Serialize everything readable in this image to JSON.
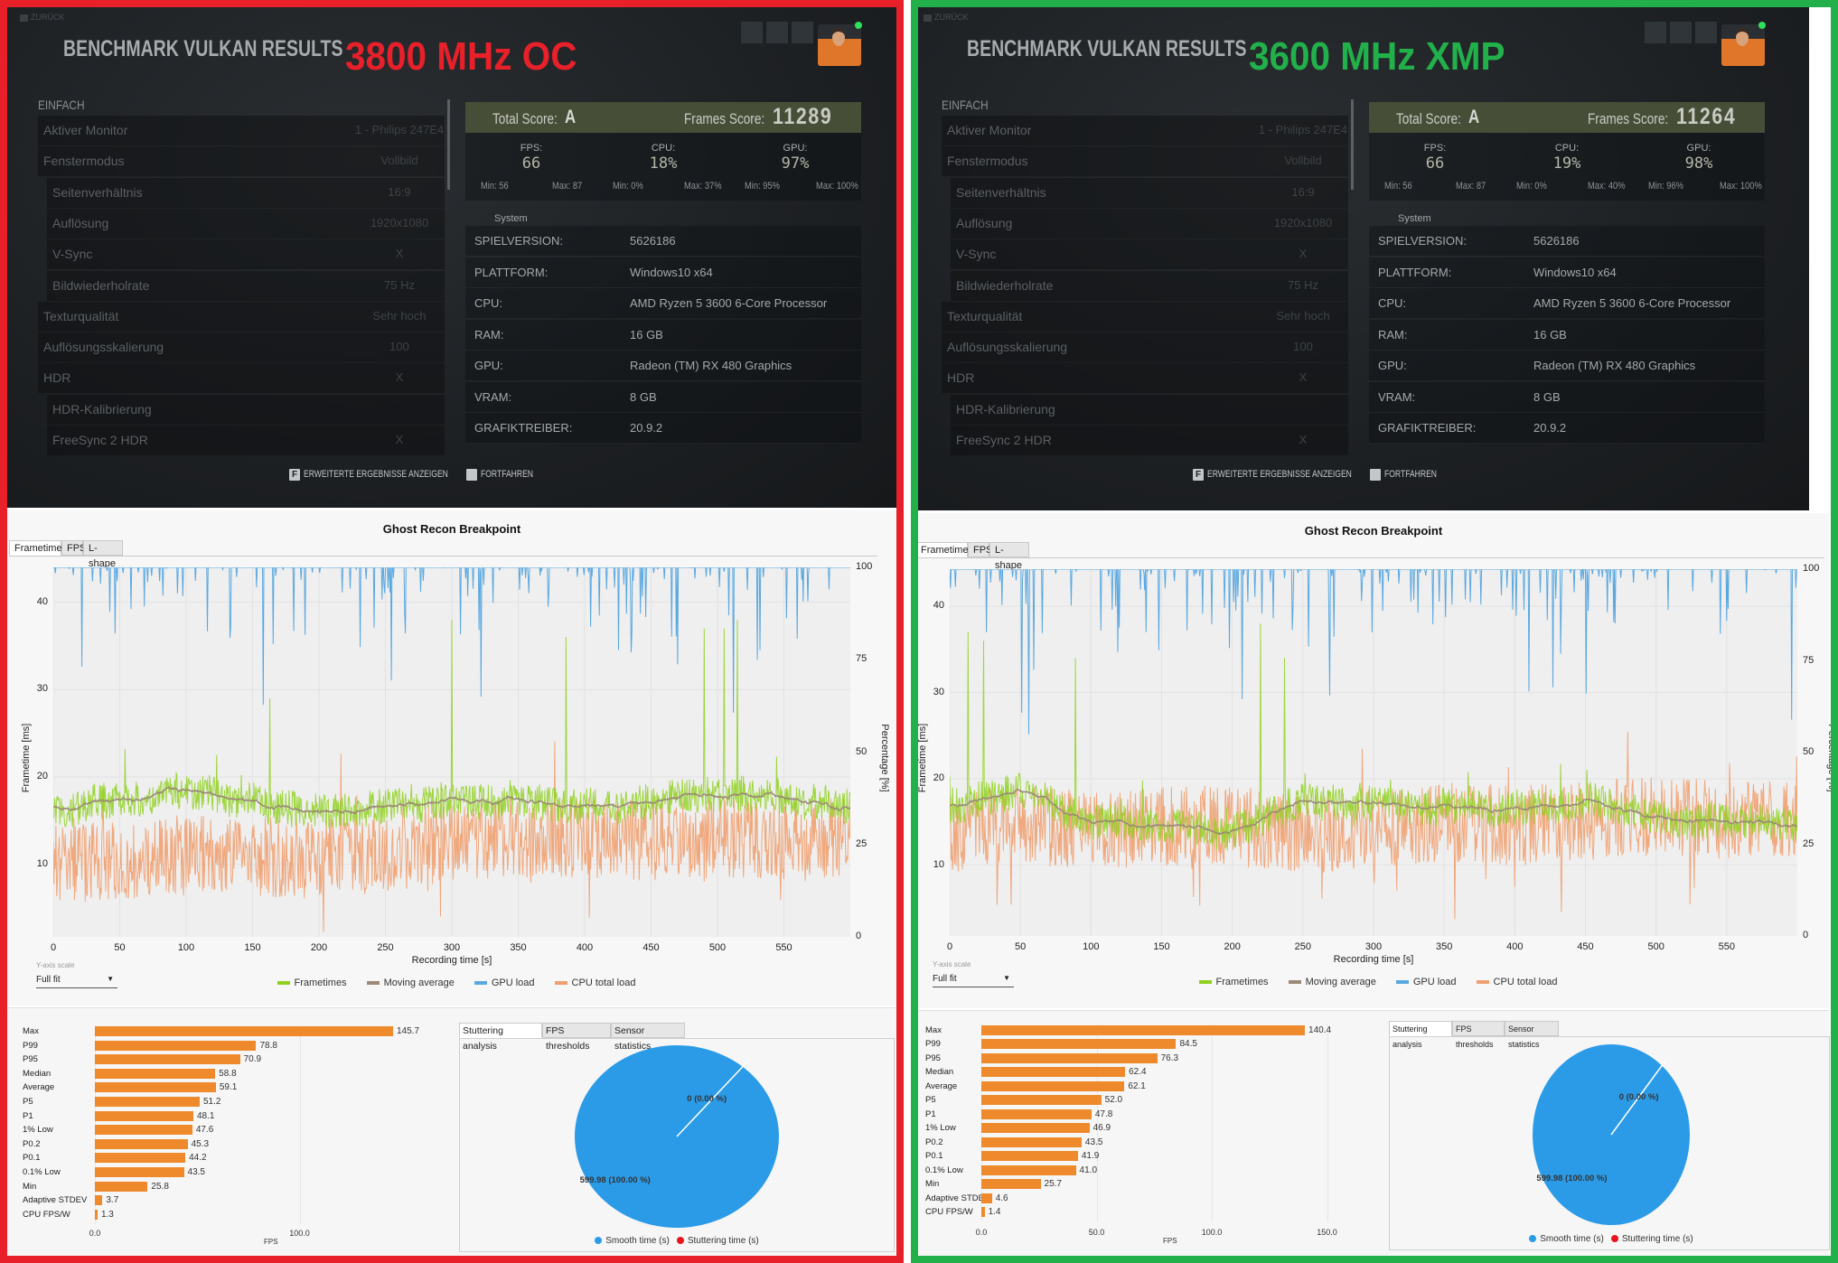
{
  "panels": [
    {
      "label": "3800 MHz OC",
      "accent": "#e8202a",
      "game": {
        "back": "ZURÜCK",
        "title": "BENCHMARK VULKAN RESULTS",
        "section": "EINFACH",
        "settings": [
          {
            "name": "Aktiver Monitor",
            "value": "1 - Philips 247E4",
            "indent": false
          },
          {
            "name": "Fenstermodus",
            "value": "Vollbild",
            "indent": false
          },
          {
            "name": "Seitenverhältnis",
            "value": "16:9",
            "indent": true
          },
          {
            "name": "Auflösung",
            "value": "1920x1080",
            "indent": true
          },
          {
            "name": "V-Sync",
            "value": "X",
            "indent": true
          },
          {
            "name": "Bildwiederholrate",
            "value": "75 Hz",
            "indent": true
          },
          {
            "name": "Texturqualität",
            "value": "Sehr hoch",
            "indent": false
          },
          {
            "name": "Auflösungsskalierung",
            "value": "100",
            "indent": false
          },
          {
            "name": "HDR",
            "value": "X",
            "indent": false
          },
          {
            "name": "HDR-Kalibrierung",
            "value": "",
            "indent": true
          },
          {
            "name": "FreeSync 2 HDR",
            "value": "X",
            "indent": true
          }
        ],
        "total_score_label": "Total Score:",
        "total_score": "A",
        "frames_score_label": "Frames Score:",
        "frames_score": "11289",
        "stats": [
          {
            "label": "FPS:",
            "value": "66",
            "min": "Min: 56",
            "max": "Max: 87"
          },
          {
            "label": "CPU:",
            "value": "18%",
            "min": "Min: 0%",
            "max": "Max: 37%"
          },
          {
            "label": "GPU:",
            "value": "97%",
            "min": "Min: 95%",
            "max": "Max: 100%"
          }
        ],
        "system_header": "System",
        "system": [
          {
            "key": "SPIELVERSION:",
            "value": "5626186"
          },
          {
            "key": "PLATTFORM:",
            "value": "Windows10 x64"
          },
          {
            "key": "CPU:",
            "value": "AMD Ryzen 5 3600 6-Core Processor"
          },
          {
            "key": "RAM:",
            "value": "16 GB"
          },
          {
            "key": "GPU:",
            "value": "Radeon (TM) RX 480 Graphics"
          },
          {
            "key": "VRAM:",
            "value": "8 GB"
          },
          {
            "key": "GRAFIKTREIBER:",
            "value": "20.9.2"
          }
        ],
        "buttons": [
          {
            "key": "F",
            "label": "ERWEITERTE ERGEBNISSE ANZEIGEN"
          },
          {
            "key": "",
            "label": "FORTFAHREN"
          }
        ]
      },
      "tabs": [
        "Frametimes",
        "FPS",
        "L-shape"
      ],
      "y_axis_scale_label": "Y-axis scale",
      "y_axis_scale_value": "Full fit",
      "stats_tabs": [
        "Stuttering analysis",
        "FPS thresholds",
        "Sensor statistics"
      ]
    },
    {
      "label": "3600 MHz XMP",
      "accent": "#22b04b",
      "game": {
        "back": "ZURÜCK",
        "title": "BENCHMARK VULKAN RESULTS",
        "section": "EINFACH",
        "settings": [
          {
            "name": "Aktiver Monitor",
            "value": "1 - Philips 247E4",
            "indent": false
          },
          {
            "name": "Fenstermodus",
            "value": "Vollbild",
            "indent": false
          },
          {
            "name": "Seitenverhältnis",
            "value": "16:9",
            "indent": true
          },
          {
            "name": "Auflösung",
            "value": "1920x1080",
            "indent": true
          },
          {
            "name": "V-Sync",
            "value": "X",
            "indent": true
          },
          {
            "name": "Bildwiederholrate",
            "value": "75 Hz",
            "indent": true
          },
          {
            "name": "Texturqualität",
            "value": "Sehr hoch",
            "indent": false
          },
          {
            "name": "Auflösungsskalierung",
            "value": "100",
            "indent": false
          },
          {
            "name": "HDR",
            "value": "X",
            "indent": false
          },
          {
            "name": "HDR-Kalibrierung",
            "value": "",
            "indent": true
          },
          {
            "name": "FreeSync 2 HDR",
            "value": "X",
            "indent": true
          }
        ],
        "total_score_label": "Total Score:",
        "total_score": "A",
        "frames_score_label": "Frames Score:",
        "frames_score": "11264",
        "stats": [
          {
            "label": "FPS:",
            "value": "66",
            "min": "Min: 56",
            "max": "Max: 87"
          },
          {
            "label": "CPU:",
            "value": "19%",
            "min": "Min: 0%",
            "max": "Max: 40%"
          },
          {
            "label": "GPU:",
            "value": "98%",
            "min": "Min: 96%",
            "max": "Max: 100%"
          }
        ],
        "system_header": "System",
        "system": [
          {
            "key": "SPIELVERSION:",
            "value": "5626186"
          },
          {
            "key": "PLATTFORM:",
            "value": "Windows10 x64"
          },
          {
            "key": "CPU:",
            "value": "AMD Ryzen 5 3600 6-Core Processor"
          },
          {
            "key": "RAM:",
            "value": "16 GB"
          },
          {
            "key": "GPU:",
            "value": "Radeon (TM) RX 480 Graphics"
          },
          {
            "key": "VRAM:",
            "value": "8 GB"
          },
          {
            "key": "GRAFIKTREIBER:",
            "value": "20.9.2"
          }
        ],
        "buttons": [
          {
            "key": "F",
            "label": "ERWEITERTE ERGEBNISSE ANZEIGEN"
          },
          {
            "key": "",
            "label": "FORTFAHREN"
          }
        ]
      },
      "tabs": [
        "Frametimes",
        "FPS",
        "L-shape"
      ],
      "y_axis_scale_label": "Y-axis scale",
      "y_axis_scale_value": "Full fit",
      "stats_tabs": [
        "Stuttering analysis",
        "FPS thresholds",
        "Sensor statistics"
      ]
    }
  ],
  "chart_data": [
    {
      "type": "line",
      "title": "Ghost Recon Breakpoint",
      "xlabel": "Recording time [s]",
      "ylabel": "Frametime [ms]",
      "y2label": "Percentage [%]",
      "xlim": [
        0,
        600
      ],
      "ylim": [
        1.7,
        44
      ],
      "y2lim": [
        0,
        100
      ],
      "xticks": [
        "0",
        "50",
        "100",
        "150",
        "200",
        "250",
        "300",
        "350",
        "400",
        "450",
        "500",
        "550"
      ],
      "yticks": [
        "10",
        "20",
        "30",
        "40"
      ],
      "y2ticks": [
        "0",
        "25",
        "50",
        "75",
        "100"
      ],
      "grid": true,
      "legend_position": "bottom",
      "x": [
        0,
        50,
        100,
        150,
        200,
        250,
        300,
        350,
        400,
        450,
        500,
        550,
        600
      ],
      "series": [
        {
          "name": "Frametimes",
          "color": "#8fd11e",
          "axis": "left",
          "values": [
            16.5,
            17,
            18.5,
            17,
            16,
            16.5,
            17.5,
            17,
            17,
            17,
            18,
            17.5,
            16.5
          ],
          "spikes": [
            [
              163,
              29
            ],
            [
              300,
              38
            ],
            [
              386,
              36
            ],
            [
              490,
              37
            ],
            [
              505,
              37
            ],
            [
              515,
              38
            ]
          ]
        },
        {
          "name": "Moving average",
          "color": "#9b8a78",
          "axis": "left",
          "values": [
            16.5,
            17,
            18.5,
            17,
            16,
            16.5,
            17.5,
            17,
            17,
            17,
            18,
            17.5,
            16.5
          ]
        },
        {
          "name": "GPU load",
          "color": "#5aa8e0",
          "axis": "right",
          "values": [
            97,
            97,
            97,
            97,
            96,
            97,
            97,
            97,
            98,
            97,
            97,
            97,
            97
          ]
        },
        {
          "name": "CPU total load",
          "color": "#f0a070",
          "axis": "right",
          "values": [
            20,
            21,
            22,
            22,
            21,
            23,
            26,
            27,
            27,
            26,
            27,
            25,
            27
          ]
        }
      ]
    },
    {
      "type": "line",
      "title": "Ghost Recon Breakpoint",
      "xlabel": "Recording time [s]",
      "ylabel": "Frametime [ms]",
      "y2label": "Percentage [%]",
      "xlim": [
        0,
        600
      ],
      "ylim": [
        1.8,
        44.3
      ],
      "y2lim": [
        0,
        100
      ],
      "xticks": [
        "0",
        "50",
        "100",
        "150",
        "200",
        "250",
        "300",
        "350",
        "400",
        "450",
        "500",
        "550"
      ],
      "yticks": [
        "10",
        "20",
        "30",
        "40"
      ],
      "y2ticks": [
        "0",
        "25",
        "50",
        "75",
        "100"
      ],
      "grid": true,
      "legend_position": "bottom",
      "x": [
        0,
        50,
        100,
        150,
        200,
        250,
        300,
        350,
        400,
        450,
        500,
        550,
        600
      ],
      "series": [
        {
          "name": "Frametimes",
          "color": "#8fd11e",
          "axis": "left",
          "values": [
            17,
            18.5,
            15,
            14.5,
            14,
            17.5,
            17,
            16.5,
            16.5,
            17.5,
            15.5,
            15,
            15
          ],
          "spikes": [
            [
              13,
              37
            ],
            [
              24,
              36
            ],
            [
              89,
              34
            ],
            [
              220,
              38
            ],
            [
              237,
              34
            ]
          ]
        },
        {
          "name": "Moving average",
          "color": "#9b8a78",
          "axis": "left",
          "values": [
            17,
            18.5,
            15,
            14.5,
            14,
            17.5,
            17,
            16.5,
            16.5,
            17.5,
            15.5,
            15,
            15
          ]
        },
        {
          "name": "GPU load",
          "color": "#5aa8e0",
          "axis": "right",
          "values": [
            98,
            98,
            98,
            97,
            98,
            98,
            98,
            98,
            98,
            98,
            98,
            98,
            98
          ]
        },
        {
          "name": "CPU total load",
          "color": "#f0a070",
          "axis": "right",
          "values": [
            28,
            30,
            29,
            30,
            30,
            28,
            29,
            31,
            30,
            31,
            33,
            32,
            31
          ]
        }
      ]
    },
    {
      "type": "bar",
      "orientation": "horizontal",
      "xlabel": "FPS",
      "xticks": [
        "0.0",
        "100.0"
      ],
      "categories": [
        "Max",
        "P99",
        "P95",
        "Median",
        "Average",
        "P5",
        "P1",
        "1% Low",
        "P0.2",
        "P0.1",
        "0.1% Low",
        "Min",
        "Adaptive STDEV",
        "CPU FPS/W"
      ],
      "values": [
        145.7,
        78.8,
        70.9,
        58.8,
        59.1,
        51.2,
        48.1,
        47.6,
        45.3,
        44.2,
        43.5,
        25.8,
        3.7,
        1.3
      ],
      "labels": [
        "145.7",
        "78.8",
        "70.9",
        "58.8",
        "59.1",
        "51.2",
        "48.1",
        "47.6",
        "45.3",
        "44.2",
        "43.5",
        "25.8",
        "3.7",
        "1.3"
      ],
      "color": "#ee8a2b"
    },
    {
      "type": "bar",
      "orientation": "horizontal",
      "xlabel": "FPS",
      "xticks": [
        "0.0",
        "50.0",
        "100.0",
        "150.0"
      ],
      "categories": [
        "Max",
        "P99",
        "P95",
        "Median",
        "Average",
        "P5",
        "P1",
        "1% Low",
        "P0.2",
        "P0.1",
        "0.1% Low",
        "Min",
        "Adaptive STDEV",
        "CPU FPS/W"
      ],
      "values": [
        140.4,
        84.5,
        76.3,
        62.4,
        62.1,
        52.0,
        47.8,
        46.9,
        43.5,
        41.9,
        41.0,
        25.7,
        4.6,
        1.4
      ],
      "labels": [
        "140.4",
        "84.5",
        "76.3",
        "62.4",
        "62.1",
        "52.0",
        "47.8",
        "46.9",
        "43.5",
        "41.9",
        "41.0",
        "25.7",
        "4.6",
        "1.4"
      ],
      "color": "#ee8a2b"
    },
    {
      "type": "pie",
      "slices": [
        {
          "name": "Smooth time (s)",
          "value": 599.98,
          "label": "599.98 (100.00 %)",
          "color": "#2b9be8"
        },
        {
          "name": "Stuttering time (s)",
          "value": 0,
          "label": "0 (0.00 %)",
          "color": "#e8161c"
        }
      ]
    },
    {
      "type": "pie",
      "slices": [
        {
          "name": "Smooth time (s)",
          "value": 599.98,
          "label": "599.98 (100.00 %)",
          "color": "#2b9be8"
        },
        {
          "name": "Stuttering time (s)",
          "value": 0,
          "label": "0 (0.00 %)",
          "color": "#e8161c"
        }
      ]
    }
  ]
}
